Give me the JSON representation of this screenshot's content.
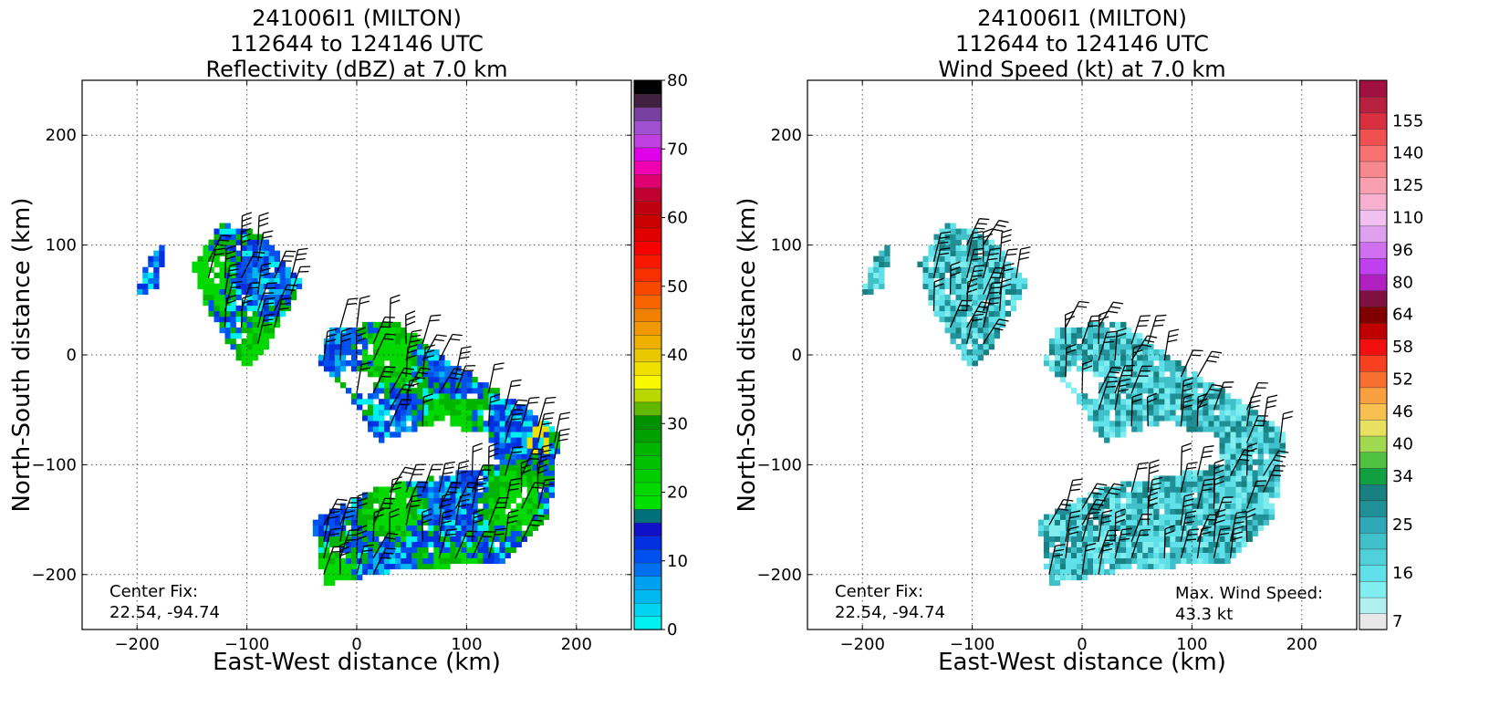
{
  "chart_data": [
    {
      "type": "heatmap",
      "title_lines": [
        "241006I1 (MILTON)",
        "112644 to 124146 UTC",
        "Reflectivity (dBZ) at 7.0 km"
      ],
      "xlabel": "East-West distance (km)",
      "ylabel": "North-South distance (km)",
      "xlim": [
        -250,
        250
      ],
      "ylim": [
        -250,
        250
      ],
      "xticks": [
        -200,
        -100,
        0,
        100,
        200
      ],
      "yticks": [
        -200,
        -100,
        0,
        100,
        200
      ],
      "grid": true,
      "annotations": {
        "center_fix_title": "Center Fix:",
        "center_fix_value": "22.54, -94.74"
      },
      "colorbar": {
        "min": 0,
        "max": 80,
        "tick_values": [
          0,
          10,
          20,
          30,
          40,
          50,
          60,
          70,
          80
        ],
        "tick_labels": [
          "0",
          "10",
          "20",
          "30",
          "40",
          "50",
          "60",
          "70",
          "80"
        ],
        "colors": [
          "#00f0f0",
          "#00d4f0",
          "#00b8f0",
          "#00a0f0",
          "#0070f0",
          "#0050f0",
          "#0030e0",
          "#1010c8",
          "#00707a",
          "#00e000",
          "#00d800",
          "#00cc00",
          "#00c000",
          "#00b400",
          "#00a000",
          "#009000",
          "#60b800",
          "#b8d800",
          "#f8f800",
          "#f0e000",
          "#e8c800",
          "#f0b000",
          "#f09800",
          "#f08000",
          "#f86400",
          "#f84800",
          "#f83000",
          "#f81800",
          "#f80000",
          "#e00000",
          "#c80000",
          "#c00010",
          "#c00030",
          "#e00070",
          "#f000b0",
          "#e000e8",
          "#c040e0",
          "#a050d0",
          "#7840a0",
          "#402040",
          "#000000"
        ]
      },
      "wind_barbs": true
    },
    {
      "type": "heatmap",
      "title_lines": [
        "241006I1 (MILTON)",
        "112644 to 124146 UTC",
        "Wind Speed (kt) at 7.0 km"
      ],
      "xlabel": "East-West distance (km)",
      "ylabel": "North-South distance (km)",
      "xlim": [
        -250,
        250
      ],
      "ylim": [
        -250,
        250
      ],
      "xticks": [
        -200,
        -100,
        0,
        100,
        200
      ],
      "yticks": [
        -200,
        -100,
        0,
        100,
        200
      ],
      "grid": true,
      "annotations": {
        "center_fix_title": "Center Fix:",
        "center_fix_value": "22.54, -94.74",
        "max_wind_title": "Max. Wind Speed:",
        "max_wind_value": "43.3 kt"
      },
      "colorbar": {
        "tick_labels": [
          "7",
          "16",
          "25",
          "34",
          "40",
          "46",
          "52",
          "58",
          "64",
          "80",
          "96",
          "110",
          "125",
          "140",
          "155"
        ],
        "tick_bin_index": [
          0,
          3,
          6,
          9,
          11,
          13,
          15,
          17,
          19,
          21,
          23,
          25,
          27,
          29,
          31
        ],
        "colors": [
          "#e8e8e8",
          "#b0f0f0",
          "#80eeee",
          "#60e0e8",
          "#50d0d8",
          "#40c0c8",
          "#30a8b8",
          "#209098",
          "#188080",
          "#10a040",
          "#50c040",
          "#a0d850",
          "#e8e060",
          "#f8c050",
          "#f8a040",
          "#f87030",
          "#f84020",
          "#f01010",
          "#c00000",
          "#800000",
          "#801040",
          "#b020c0",
          "#c040f0",
          "#d070f0",
          "#e0a0f0",
          "#f0c0f0",
          "#f8b0d0",
          "#f8a0b0",
          "#f88890",
          "#f87070",
          "#f05050",
          "#d83040",
          "#b82040",
          "#a01040"
        ]
      },
      "wind_barbs": true
    }
  ]
}
